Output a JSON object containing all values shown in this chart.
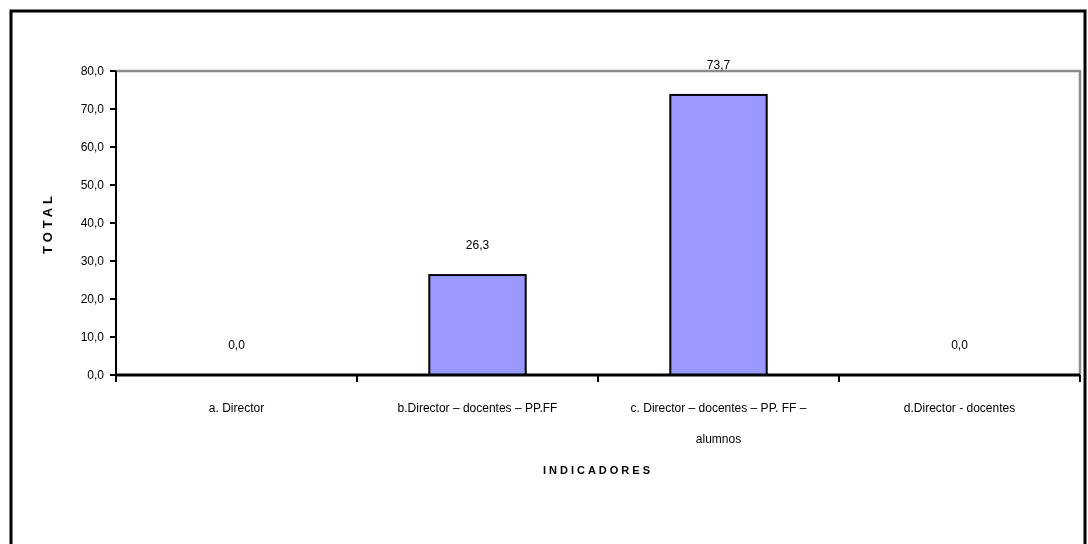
{
  "chart_data": {
    "type": "bar",
    "xlabel": "INDICADORES",
    "ylabel": "TOTAL",
    "categories": [
      "a. Director",
      "b.Director – docentes – PP.FF",
      "c. Director – docentes – PP. FF – alumnos",
      "d.Director - docentes"
    ],
    "values": [
      0,
      26.3,
      73.7,
      0
    ],
    "color": "#9999ff",
    "ylim": [
      0,
      80
    ],
    "yticks": [
      {
        "value": 0,
        "label": "0,0"
      },
      {
        "value": 10,
        "label": "10,0"
      },
      {
        "value": 20,
        "label": "20,0"
      },
      {
        "value": 30,
        "label": "30,0"
      },
      {
        "value": 40,
        "label": "40,0"
      },
      {
        "value": 50,
        "label": "50,0"
      },
      {
        "value": 60,
        "label": "60,0"
      },
      {
        "value": 70,
        "label": "70,0"
      },
      {
        "value": 80,
        "label": "80,0"
      }
    ],
    "value_labels": [
      "0,0",
      "26,3",
      "73,7",
      "0,0"
    ]
  }
}
